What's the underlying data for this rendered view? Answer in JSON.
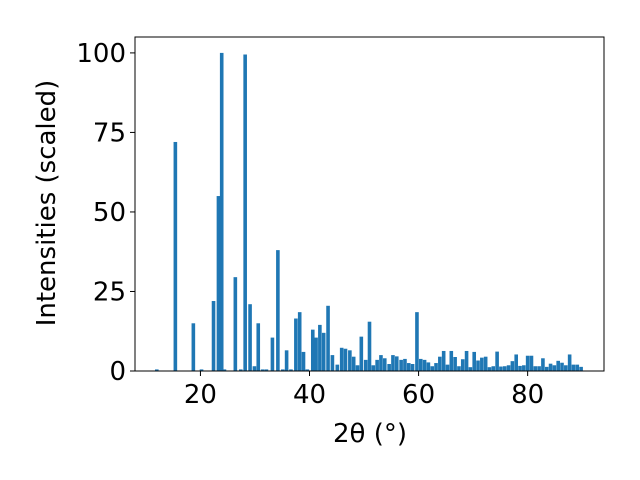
{
  "chart_data": {
    "type": "bar",
    "title": "",
    "xlabel": "2θ (°)",
    "ylabel": "Intensities (scaled)",
    "xlim": [
      8,
      94
    ],
    "ylim": [
      0,
      105
    ],
    "x_ticks": [
      20,
      40,
      60,
      80
    ],
    "y_ticks": [
      0,
      25,
      50,
      75,
      100
    ],
    "grid": false,
    "legend": "none",
    "bar_color": "#1f77b4",
    "series": [
      {
        "x": [
          12.0,
          15.4,
          18.7,
          20.2,
          22.4,
          23.3,
          23.9,
          24.4,
          26.4,
          27.4,
          28.2,
          29.1,
          29.9,
          30.6,
          31.4,
          32.1,
          33.2,
          34.2,
          35.1,
          35.8,
          36.6,
          37.5,
          38.2,
          38.9,
          39.6,
          40.6,
          41.2,
          41.9,
          42.6,
          43.4,
          44.2,
          45.1,
          45.9,
          46.6,
          47.4,
          48.1,
          48.8,
          49.5,
          50.3,
          51.0,
          51.7,
          52.4,
          53.1,
          53.8,
          54.6,
          55.3,
          56.0,
          56.8,
          57.5,
          58.2,
          58.9,
          59.7,
          60.4,
          61.1,
          61.8,
          62.5,
          63.2,
          63.9,
          64.6,
          65.3,
          66.0,
          66.7,
          67.4,
          68.1,
          68.8,
          69.5,
          70.2,
          70.9,
          71.6,
          72.3,
          73.0,
          73.7,
          74.4,
          75.1,
          75.8,
          76.5,
          77.2,
          77.9,
          78.6,
          79.3,
          80.0,
          80.7,
          81.4,
          82.1,
          82.8,
          83.5,
          84.2,
          84.9,
          85.6,
          86.3,
          87.0,
          87.7,
          88.4,
          89.1,
          89.8
        ],
        "y": [
          0.5,
          72,
          15,
          0.5,
          22,
          55,
          100,
          0.5,
          29.5,
          0.5,
          99.5,
          21,
          1.5,
          15,
          0.5,
          0.5,
          10.5,
          38,
          0.5,
          6.5,
          0.5,
          16.5,
          18.5,
          6,
          0.5,
          13,
          10.5,
          14.5,
          12,
          20.5,
          5,
          2,
          7.3,
          7,
          6.5,
          4.5,
          1.8,
          10.8,
          3.5,
          15.5,
          1.8,
          3.5,
          5,
          4,
          2.2,
          5,
          4.6,
          3.5,
          3.8,
          2.5,
          2.2,
          18.5,
          3.8,
          3.5,
          2.7,
          1.5,
          2.5,
          4.5,
          6.3,
          2,
          6.3,
          4.4,
          1.5,
          3.7,
          6.3,
          1.2,
          6,
          3.3,
          4.2,
          4.5,
          1.2,
          1.5,
          6.1,
          1.4,
          1.5,
          1.8,
          3.1,
          5.2,
          1.6,
          1.8,
          4.8,
          4.8,
          1.5,
          1.5,
          4,
          1.3,
          2.3,
          1.8,
          3.2,
          2.6,
          1.8,
          5.2,
          2,
          2,
          1.3
        ]
      }
    ]
  }
}
